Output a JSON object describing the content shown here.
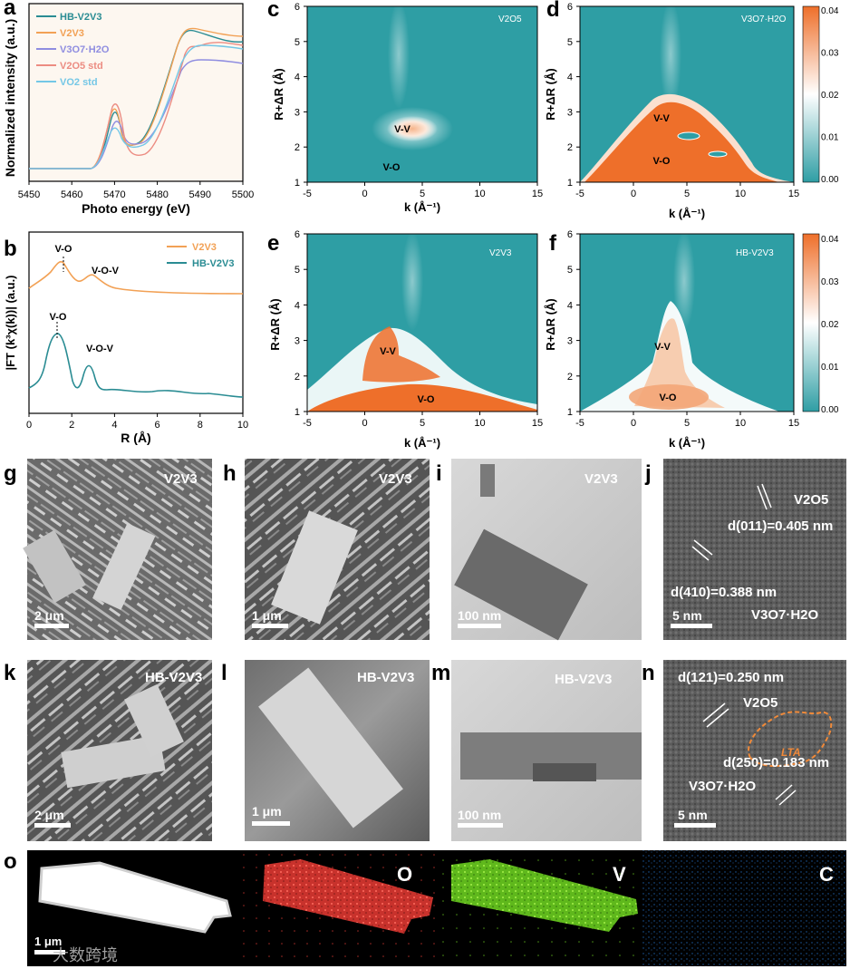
{
  "panels": {
    "a": {
      "letter": "a",
      "xlabel": "Photo energy (eV)",
      "ylabel": "Normalized intensity (a.u.)",
      "xticks": [
        "5450",
        "5460",
        "5470",
        "5480",
        "5490",
        "5500"
      ],
      "legend": [
        {
          "label": "HB-V2V3",
          "color": "#2a8c93"
        },
        {
          "label": "V2V3",
          "color": "#f2a155"
        },
        {
          "label": "V3O7·H2O",
          "color": "#8f8de0"
        },
        {
          "label": "V2O5 std",
          "color": "#ec8c82"
        },
        {
          "label": "VO2 std",
          "color": "#74c7e6"
        }
      ]
    },
    "b": {
      "letter": "b",
      "xlabel": "R (Å)",
      "ylabel": "|FT (k³χ(k))| (a.u.)",
      "xticks": [
        "0",
        "2",
        "4",
        "6",
        "8",
        "10"
      ],
      "legend": [
        {
          "label": "V2V3",
          "color": "#f2a155"
        },
        {
          "label": "HB-V2V3",
          "color": "#2a8c93"
        }
      ],
      "annotations": [
        "V-O",
        "V-O-V",
        "V-O",
        "V-O-V"
      ]
    },
    "wavelet": {
      "xlabel": "k (Å⁻¹)",
      "ylabel": "R+ΔR (Å)",
      "xticks": [
        "-5",
        "0",
        "5",
        "10",
        "15"
      ],
      "yticks": [
        "1",
        "2",
        "3",
        "4",
        "5",
        "6"
      ],
      "colorbar_ticks": [
        "0.04",
        "0.03",
        "0.02",
        "0.01",
        "0.00"
      ],
      "colors": {
        "low": "#2e9ea4",
        "mid": "#ffffff",
        "high": "#ee6f2a"
      },
      "c": {
        "letter": "c",
        "title": "V2O5",
        "labels": [
          "V-V",
          "V-O"
        ]
      },
      "d": {
        "letter": "d",
        "title": "V3O7·H2O",
        "labels": [
          "V-V",
          "V-O"
        ]
      },
      "e": {
        "letter": "e",
        "title": "V2V3",
        "labels": [
          "V-V",
          "V-O"
        ]
      },
      "f": {
        "letter": "f",
        "title": "HB-V2V3",
        "labels": [
          "V-V",
          "V-O"
        ]
      }
    },
    "micrographs": {
      "g": {
        "letter": "g",
        "sample": "V2V3",
        "scale": "2 μm"
      },
      "h": {
        "letter": "h",
        "sample": "V2V3",
        "scale": "1 μm"
      },
      "i": {
        "letter": "i",
        "sample": "V2V3",
        "scale": "100 nm"
      },
      "j": {
        "letter": "j",
        "phase1": "V2O5",
        "d1": "d(011)=0.405 nm",
        "d2": "d(410)=0.388 nm",
        "phase2": "V3O7·H2O",
        "scale": "5 nm"
      },
      "k": {
        "letter": "k",
        "sample": "HB-V2V3",
        "scale": "2 μm"
      },
      "l": {
        "letter": "l",
        "sample": "HB-V2V3",
        "scale": "1 μm"
      },
      "m": {
        "letter": "m",
        "sample": "HB-V2V3",
        "scale": "100 nm"
      },
      "n": {
        "letter": "n",
        "d1": "d(121)=0.250 nm",
        "phase1": "V2O5",
        "region": "LTA",
        "d2": "d(250)=0.183 nm",
        "phase2": "V3O7·H2O",
        "scale": "5 nm"
      },
      "o": {
        "letter": "o",
        "scale": "1 μm",
        "elements": [
          "O",
          "V",
          "C"
        ],
        "watermark": "大数跨境"
      }
    }
  }
}
